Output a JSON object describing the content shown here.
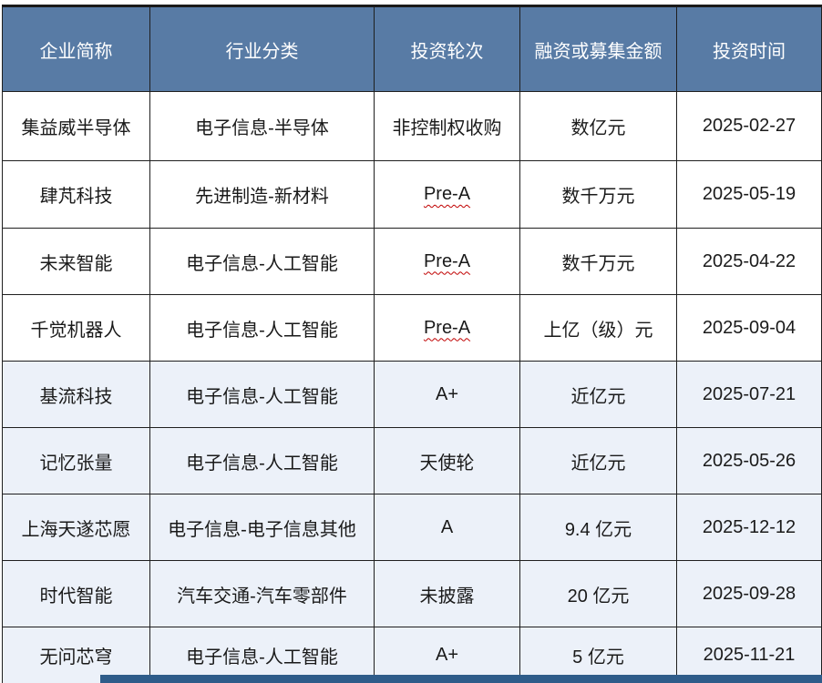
{
  "table": {
    "columns": [
      "企业简称",
      "行业分类",
      "投资轮次",
      "融资或募集金额",
      "投资时间"
    ],
    "rows": [
      {
        "company": "集益威半导体",
        "industry": "电子信息-半导体",
        "round": "非控制权收购",
        "amount": "数亿元",
        "date": "2025-02-27"
      },
      {
        "company": "肆芃科技",
        "industry": "先进制造-新材料",
        "round": "Pre-A",
        "amount": "数千万元",
        "date": "2025-05-19"
      },
      {
        "company": "未来智能",
        "industry": "电子信息-人工智能",
        "round": "Pre-A",
        "amount": "数千万元",
        "date": "2025-04-22"
      },
      {
        "company": "千觉机器人",
        "industry": "电子信息-人工智能",
        "round": "Pre-A",
        "amount": "上亿（级）元",
        "date": "2025-09-04"
      },
      {
        "company": "基流科技",
        "industry": "电子信息-人工智能",
        "round": "A+",
        "amount": "近亿元",
        "date": "2025-07-21"
      },
      {
        "company": "记忆张量",
        "industry": "电子信息-人工智能",
        "round": "天使轮",
        "amount": "近亿元",
        "date": "2025-05-26"
      },
      {
        "company": "上海天遂芯愿",
        "industry": "电子信息-电子信息其他",
        "round": "A",
        "amount": "9.4 亿元",
        "date": "2025-12-12"
      },
      {
        "company": "时代智能",
        "industry": "汽车交通-汽车零部件",
        "round": "未披露",
        "amount": "20 亿元",
        "date": "2025-09-28"
      },
      {
        "company": "无问芯穹",
        "industry": "电子信息-人工智能",
        "round": "A+",
        "amount": "5 亿元",
        "date": "2025-11-21"
      }
    ]
  },
  "colors": {
    "header_bg": "#587BA5",
    "header_text": "#FFFFFF",
    "row_shaded_bg": "#ECF1F9",
    "row_plain_bg": "#FFFFFF",
    "border": "#1F1F1F",
    "body_text": "#1A1A1A",
    "spellcheck_squiggle": "#C00000",
    "bottom_bar": "#2E5C8A"
  }
}
